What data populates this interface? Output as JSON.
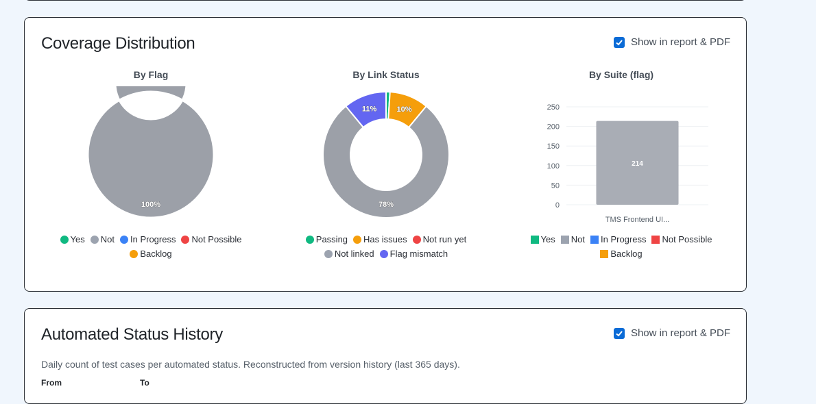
{
  "coverage": {
    "title": "Coverage Distribution",
    "toggle_label": "Show in report & PDF",
    "by_flag": {
      "title": "By Flag",
      "slices": [
        {
          "label": "Not",
          "percent": 100,
          "color": "#9ca0a8",
          "text": "100%"
        }
      ],
      "legend": [
        {
          "label": "Yes",
          "color": "#10b981"
        },
        {
          "label": "Not",
          "color": "#9ca3af"
        },
        {
          "label": "In Progress",
          "color": "#3b82f6"
        },
        {
          "label": "Not Possible",
          "color": "#ef4444"
        },
        {
          "label": "Backlog",
          "color": "#f59e0b"
        }
      ]
    },
    "by_link": {
      "title": "By Link Status",
      "slices": [
        {
          "label": "Passing",
          "percent": 1,
          "color": "#10b981",
          "text": ""
        },
        {
          "label": "Has issues",
          "percent": 10,
          "color": "#f59e0b",
          "text": "10%"
        },
        {
          "label": "Not linked",
          "percent": 78,
          "color": "#9ca0a8",
          "text": "78%"
        },
        {
          "label": "Flag mismatch",
          "percent": 11,
          "color": "#6366f1",
          "text": "11%"
        }
      ],
      "legend": [
        {
          "label": "Passing",
          "color": "#10b981"
        },
        {
          "label": "Has issues",
          "color": "#f59e0b"
        },
        {
          "label": "Not run yet",
          "color": "#ef4444"
        },
        {
          "label": "Not linked",
          "color": "#9ca3af"
        },
        {
          "label": "Flag mismatch",
          "color": "#6366f1"
        }
      ]
    },
    "by_suite": {
      "title": "By Suite (flag)",
      "legend": [
        {
          "label": "Yes",
          "color": "#10b981"
        },
        {
          "label": "Not",
          "color": "#9ca3af"
        },
        {
          "label": "In Progress",
          "color": "#3b82f6"
        },
        {
          "label": "Not Possible",
          "color": "#ef4444"
        },
        {
          "label": "Backlog",
          "color": "#f59e0b"
        }
      ]
    }
  },
  "chart_data": {
    "type": "bar",
    "categories": [
      "TMS Frontend UI..."
    ],
    "series": [
      {
        "name": "Not",
        "values": [
          214
        ]
      }
    ],
    "y_ticks": [
      0,
      50,
      100,
      150,
      200,
      250
    ],
    "ylim": [
      0,
      250
    ],
    "data_labels": [
      "214"
    ],
    "bar_color": "#a9adb5"
  },
  "history": {
    "title": "Automated Status History",
    "toggle_label": "Show in report & PDF",
    "description": "Daily count of test cases per automated status. Reconstructed from version history (last 365 days).",
    "from_label": "From",
    "to_label": "To"
  }
}
